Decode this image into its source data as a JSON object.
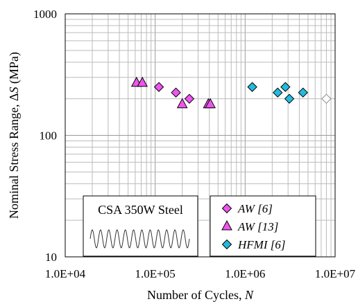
{
  "chart_data": {
    "type": "scatter",
    "title": "",
    "xlabel": "Number of Cycles, ",
    "xlabel_var": "N",
    "ylabel": "Nominal Stress Range, Δ",
    "ylabel_var": "S",
    "ylabel_unit": " (MPa)",
    "xscale": "log",
    "yscale": "log",
    "xlim": [
      10000,
      10000000
    ],
    "ylim": [
      10,
      1000
    ],
    "x_tick_labels": [
      "1.0E+04",
      "1.0E+05",
      "1.0E+06",
      "1.0E+07"
    ],
    "y_tick_labels": [
      "10",
      "100",
      "1000"
    ],
    "grid": true,
    "legend_position": "bottom-right",
    "inset_label": "CSA 350W Steel",
    "series": [
      {
        "name": "AW [6]",
        "marker": "diamond",
        "color": "#ee55ee",
        "points": [
          [
            110000,
            250
          ],
          [
            170000,
            225
          ],
          [
            240000,
            200
          ]
        ]
      },
      {
        "name": "AW [13]",
        "marker": "triangle",
        "color": "#ee55ee",
        "points": [
          [
            62000,
            270
          ],
          [
            72000,
            270
          ],
          [
            200000,
            180
          ],
          [
            390000,
            180
          ],
          [
            410000,
            180
          ]
        ]
      },
      {
        "name": "HFMI [6]",
        "marker": "diamond",
        "color": "#22bbdd",
        "points": [
          [
            1200000,
            250
          ],
          [
            2300000,
            225
          ],
          [
            2800000,
            250
          ],
          [
            3100000,
            200
          ],
          [
            4400000,
            225
          ]
        ]
      },
      {
        "name": "",
        "marker": "diamond-open",
        "color": "#ffffff",
        "points": [
          [
            8000000,
            200
          ]
        ]
      }
    ]
  }
}
